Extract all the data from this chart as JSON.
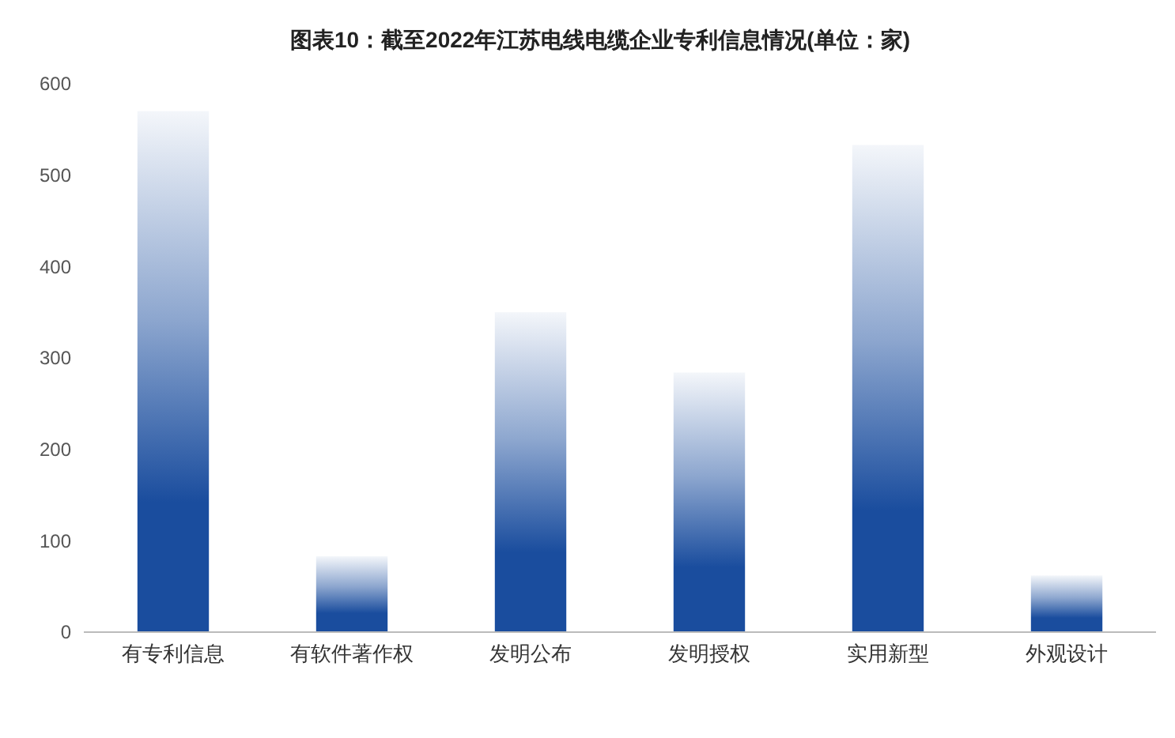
{
  "chart_data": {
    "type": "bar",
    "title": "图表10：截至2022年江苏电线电缆企业专利信息情况(单位：家)",
    "categories": [
      "有专利信息",
      "有软件著作权",
      "发明公布",
      "发明授权",
      "实用新型",
      "外观设计"
    ],
    "values": [
      570,
      83,
      350,
      284,
      533,
      62
    ],
    "color": "#1a4d9e",
    "ylim": [
      0,
      600
    ],
    "yticks": [
      0,
      100,
      200,
      300,
      400,
      500,
      600
    ],
    "grid": false
  }
}
